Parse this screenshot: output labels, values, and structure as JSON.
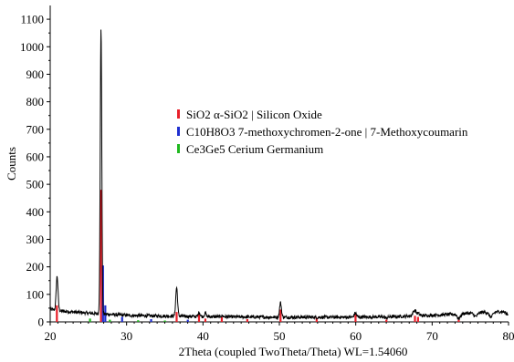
{
  "chart_data": {
    "type": "line",
    "title": "",
    "xlabel": "2Theta (coupled TwoTheta/Theta) WL=1.54060",
    "ylabel": "Counts",
    "xlim": [
      20,
      80
    ],
    "ylim": [
      0,
      1150
    ],
    "x_ticks": [
      20,
      30,
      40,
      50,
      60,
      70,
      80
    ],
    "y_ticks": [
      0,
      100,
      200,
      300,
      400,
      500,
      600,
      700,
      800,
      900,
      1000,
      1100
    ],
    "grid": false,
    "legend_position": "center-right",
    "series": [
      {
        "name": "",
        "color": "#000000",
        "baseline_points": [
          [
            20,
            45
          ],
          [
            22,
            38
          ],
          [
            24,
            34
          ],
          [
            26,
            30
          ],
          [
            28,
            27
          ],
          [
            30,
            24
          ],
          [
            33,
            22
          ],
          [
            36,
            21
          ],
          [
            40,
            19
          ],
          [
            45,
            18
          ],
          [
            50,
            17
          ],
          [
            55,
            17
          ],
          [
            60,
            17
          ],
          [
            65,
            19
          ],
          [
            68,
            22
          ],
          [
            70,
            24
          ],
          [
            73,
            28
          ],
          [
            75,
            32
          ],
          [
            77,
            35
          ],
          [
            80,
            38
          ]
        ],
        "peaks": [
          {
            "x": 20.9,
            "y": 165,
            "w": 0.12
          },
          {
            "x": 26.65,
            "y": 1065,
            "w": 0.1
          },
          {
            "x": 36.55,
            "y": 125,
            "w": 0.12
          },
          {
            "x": 39.5,
            "y": 35,
            "w": 0.12
          },
          {
            "x": 40.3,
            "y": 32,
            "w": 0.12
          },
          {
            "x": 42.5,
            "y": 22,
            "w": 0.15
          },
          {
            "x": 45.8,
            "y": 18,
            "w": 0.15
          },
          {
            "x": 50.15,
            "y": 70,
            "w": 0.12
          },
          {
            "x": 54.9,
            "y": 16,
            "w": 0.15
          },
          {
            "x": 59.95,
            "y": 32,
            "w": 0.15
          },
          {
            "x": 64.0,
            "y": 14,
            "w": 0.2
          },
          {
            "x": 67.7,
            "y": 42,
            "w": 0.2
          },
          {
            "x": 68.2,
            "y": 30,
            "w": 0.15
          },
          {
            "x": 73.5,
            "y": 12,
            "w": 0.2
          },
          {
            "x": 75.7,
            "y": 20,
            "w": 0.25
          },
          {
            "x": 77.7,
            "y": 18,
            "w": 0.25
          },
          {
            "x": 79.9,
            "y": 28,
            "w": 0.25
          }
        ]
      }
    ],
    "reference_phases": [
      {
        "name": "SiO2 α-SiO2 | Silicon Oxide",
        "color": "#e8202a",
        "sticks": [
          [
            20.86,
            60
          ],
          [
            26.64,
            480
          ],
          [
            36.54,
            36
          ],
          [
            39.47,
            28
          ],
          [
            40.3,
            12
          ],
          [
            42.45,
            18
          ],
          [
            45.79,
            10
          ],
          [
            50.14,
            45
          ],
          [
            54.87,
            15
          ],
          [
            59.96,
            28
          ],
          [
            64.0,
            8
          ],
          [
            67.74,
            22
          ],
          [
            68.14,
            18
          ],
          [
            73.47,
            8
          ]
        ]
      },
      {
        "name": "C10H8O3 7-methoxychromen-2-one | 7-Methoxycoumarin",
        "color": "#1f2fd0",
        "sticks": [
          [
            26.9,
            205
          ],
          [
            27.2,
            60
          ],
          [
            29.4,
            18
          ],
          [
            33.2,
            10
          ],
          [
            38.0,
            8
          ]
        ]
      },
      {
        "name": "Ce3Ge5 Cerium Germanium",
        "color": "#1fb81f",
        "sticks": [
          [
            25.2,
            12
          ],
          [
            27.8,
            8
          ],
          [
            31.5,
            6
          ],
          [
            35.0,
            5
          ]
        ]
      }
    ]
  }
}
